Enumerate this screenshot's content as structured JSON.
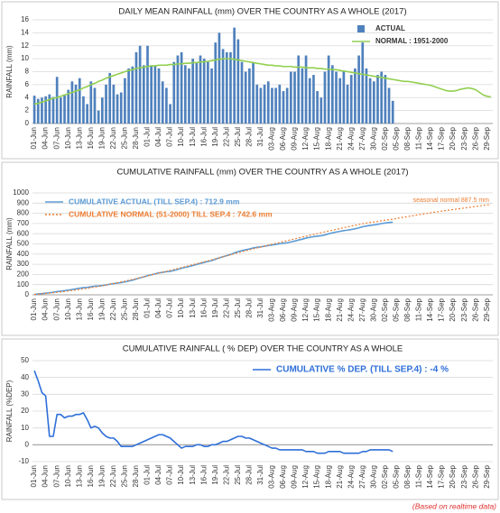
{
  "chart_data": [
    {
      "type": "bar",
      "title": "DAILY MEAN RAINFALL (mm) OVER THE COUNTRY AS A WHOLE  (2017)",
      "y_label": "RAINFALL (mm)",
      "categories": [
        "01-Jun",
        null,
        null,
        "04-Jun",
        null,
        null,
        "07-Jun",
        null,
        null,
        "10-Jun",
        null,
        null,
        "13-Jun",
        null,
        null,
        "16-Jun",
        null,
        null,
        "19-Jun",
        null,
        null,
        "22-Jun",
        null,
        null,
        "25-Jun",
        null,
        null,
        "28-Jun",
        null,
        null,
        "01-Jul",
        null,
        null,
        "04-Jul",
        null,
        null,
        "07-Jul",
        null,
        null,
        "10-Jul",
        null,
        null,
        "13-Jul",
        null,
        null,
        "16-Jul",
        null,
        null,
        "19-Jul",
        null,
        null,
        "22-Jul",
        null,
        null,
        "25-Jul",
        null,
        null,
        "28-Jul",
        null,
        null,
        "31-Jul",
        null,
        null,
        "03-Aug",
        null,
        null,
        "06-Aug",
        null,
        null,
        "09-Aug",
        null,
        null,
        "12-Aug",
        null,
        null,
        "15-Aug",
        null,
        null,
        "18-Aug",
        null,
        null,
        "21-Aug",
        null,
        null,
        "24-Aug",
        null,
        null,
        "27-Aug",
        null,
        null,
        "30-Aug",
        null,
        null,
        "02-Sep",
        null,
        null,
        "05-Sep",
        null,
        null,
        "08-Sep",
        null,
        null,
        "11-Sep",
        null,
        null,
        "14-Sep",
        null,
        null,
        "17-Sep",
        null,
        null,
        "20-Sep",
        null,
        null,
        "23-Sep",
        null,
        null,
        "26-Sep",
        null,
        null,
        "29-Sep",
        null
      ],
      "series": [
        {
          "name": "ACTUAL",
          "type": "bar",
          "color": "#4f81bd",
          "values": [
            4.3,
            3.8,
            4.0,
            4.2,
            4.5,
            4.1,
            7.2,
            4.0,
            4.5,
            5.2,
            6.5,
            6.0,
            7.0,
            4.2,
            3.0,
            6.5,
            5.5,
            2.0,
            4.0,
            6.0,
            7.8,
            6.0,
            4.5,
            4.8,
            7.0,
            8.5,
            8.8,
            11.0,
            12.0,
            9.0,
            12.0,
            9.0,
            9.0,
            8.5,
            6.5,
            5.5,
            3.0,
            9.5,
            10.5,
            11.0,
            9.0,
            8.5,
            10.0,
            9.5,
            10.5,
            10.0,
            9.5,
            8.5,
            12.5,
            14.0,
            11.5,
            11.0,
            11.0,
            14.8,
            13.0,
            9.5,
            8.0,
            8.5,
            9.5,
            6.0,
            5.5,
            6.0,
            6.5,
            5.5,
            5.5,
            6.0,
            5.0,
            5.5,
            8.0,
            8.0,
            10.5,
            8.5,
            10.5,
            7.0,
            7.5,
            5.0,
            4.0,
            8.0,
            10.5,
            9.0,
            8.0,
            7.0,
            8.0,
            6.0,
            7.5,
            8.5,
            10.5,
            12.5,
            8.5,
            7.0,
            6.5,
            7.5,
            8.0,
            7.5,
            5.5,
            3.5,
            null,
            null,
            null,
            null,
            null,
            null,
            null,
            null,
            null,
            null,
            null,
            null,
            null,
            null,
            null,
            null,
            null,
            null,
            null,
            null,
            null,
            null,
            null,
            null,
            null,
            null
          ]
        },
        {
          "name": "NORMAL : 1951-2000",
          "type": "line",
          "color": "#92d050",
          "values": [
            3.0,
            3.1,
            3.3,
            3.5,
            3.7,
            3.9,
            4.0,
            4.2,
            4.4,
            4.6,
            4.8,
            5.0,
            5.2,
            5.5,
            5.7,
            6.0,
            6.2,
            6.5,
            6.7,
            7.0,
            7.2,
            7.4,
            7.6,
            7.8,
            8.0,
            8.2,
            8.3,
            8.5,
            8.6,
            8.7,
            8.8,
            8.9,
            8.9,
            9.0,
            9.0,
            9.0,
            9.1,
            9.1,
            9.2,
            9.2,
            9.3,
            9.3,
            9.4,
            9.4,
            9.5,
            9.5,
            9.6,
            9.7,
            9.8,
            9.9,
            10.0,
            10.0,
            10.0,
            9.9,
            9.8,
            9.7,
            9.6,
            9.5,
            9.4,
            9.3,
            9.2,
            9.1,
            9.0,
            9.0,
            8.9,
            8.9,
            8.8,
            8.8,
            8.8,
            8.7,
            8.7,
            8.7,
            8.6,
            8.6,
            8.6,
            8.5,
            8.5,
            8.4,
            8.4,
            8.3,
            8.3,
            8.2,
            8.1,
            8.0,
            7.9,
            7.8,
            7.7,
            7.6,
            7.5,
            7.4,
            7.3,
            7.2,
            7.1,
            7.0,
            6.9,
            6.8,
            6.7,
            6.6,
            6.5,
            6.5,
            6.4,
            6.3,
            6.2,
            6.1,
            6.0,
            5.9,
            5.7,
            5.5,
            5.3,
            5.1,
            5.0,
            5.0,
            5.1,
            5.3,
            5.4,
            5.5,
            5.4,
            5.2,
            4.8,
            4.4,
            4.2,
            4.1
          ]
        }
      ],
      "ylim": [
        0,
        16
      ],
      "yticks": [
        0,
        2,
        4,
        6,
        8,
        10,
        12,
        14,
        16
      ],
      "grid": true,
      "legend": "upper right"
    },
    {
      "type": "line",
      "title": "CUMULATIVE RAINFALL (mm) OVER THE COUNTRY AS A WHOLE  (2017)",
      "y_label": "RAINFALL (mm)",
      "annotation": "seasonal normal 887.5 mm",
      "categories": [
        "01-Jun",
        null,
        null,
        "04-Jun",
        null,
        null,
        "07-Jun",
        null,
        null,
        "10-Jun",
        null,
        null,
        "13-Jun",
        null,
        null,
        "16-Jun",
        null,
        null,
        "19-Jun",
        null,
        null,
        "22-Jun",
        null,
        null,
        "25-Jun",
        null,
        null,
        "28-Jun",
        null,
        null,
        "01-Jul",
        null,
        null,
        "04-Jul",
        null,
        null,
        "07-Jul",
        null,
        null,
        "10-Jul",
        null,
        null,
        "13-Jul",
        null,
        null,
        "16-Jul",
        null,
        null,
        "19-Jul",
        null,
        null,
        "22-Jul",
        null,
        null,
        "25-Jul",
        null,
        null,
        "28-Jul",
        null,
        null,
        "31-Jul",
        null,
        null,
        "03-Aug",
        null,
        null,
        "06-Aug",
        null,
        null,
        "09-Aug",
        null,
        null,
        "12-Aug",
        null,
        null,
        "15-Aug",
        null,
        null,
        "18-Aug",
        null,
        null,
        "21-Aug",
        null,
        null,
        "24-Aug",
        null,
        null,
        "27-Aug",
        null,
        null,
        "30-Aug",
        null,
        null,
        "02-Sep",
        null,
        null,
        "05-Sep",
        null,
        null,
        "08-Sep",
        null,
        null,
        "11-Sep",
        null,
        null,
        "14-Sep",
        null,
        null,
        "17-Sep",
        null,
        null,
        "20-Sep",
        null,
        null,
        "23-Sep",
        null,
        null,
        "26-Sep",
        null,
        null,
        "29-Sep",
        null
      ],
      "series": [
        {
          "name": "CUMULATIVE ACTUAL (TILL SEP.4) : 712.9 mm",
          "color": "#5b9bd5",
          "values": [
            4,
            8,
            12,
            16,
            21,
            25,
            32,
            36,
            41,
            46,
            52,
            58,
            65,
            70,
            73,
            79,
            85,
            87,
            91,
            97,
            104,
            110,
            115,
            120,
            127,
            135,
            144,
            155,
            167,
            176,
            188,
            197,
            206,
            215,
            221,
            227,
            230,
            239,
            250,
            261,
            270,
            278,
            288,
            298,
            308,
            318,
            328,
            336,
            349,
            363,
            374,
            385,
            396,
            411,
            424,
            434,
            442,
            450,
            460,
            466,
            471,
            477,
            484,
            489,
            495,
            501,
            506,
            511,
            519,
            527,
            538,
            546,
            557,
            564,
            571,
            576,
            580,
            588,
            599,
            608,
            616,
            623,
            630,
            635,
            641,
            648,
            657,
            668,
            675,
            681,
            686,
            692,
            699,
            705,
            710,
            712.9,
            null,
            null,
            null,
            null,
            null,
            null,
            null,
            null,
            null,
            null,
            null,
            null,
            null,
            null,
            null,
            null,
            null,
            null,
            null,
            null,
            null,
            null,
            null,
            null,
            null,
            null
          ]
        },
        {
          "name": "CUMULATIVE NORMAL (51-2000) TILL SEP.4 : 742.6 mm",
          "color": "#ed7d31",
          "dashed": true,
          "values": [
            3,
            6,
            9,
            13,
            17,
            21,
            25,
            29,
            33,
            38,
            43,
            48,
            53,
            58,
            64,
            70,
            76,
            83,
            89,
            96,
            104,
            111,
            119,
            126,
            134,
            143,
            151,
            159,
            168,
            177,
            186,
            195,
            204,
            213,
            222,
            231,
            240,
            249,
            258,
            267,
            276,
            286,
            295,
            305,
            314,
            324,
            333,
            343,
            353,
            363,
            373,
            383,
            393,
            403,
            413,
            422,
            432,
            441,
            451,
            460,
            469,
            478,
            487,
            496,
            505,
            514,
            523,
            532,
            540,
            549,
            558,
            567,
            575,
            584,
            592,
            601,
            609,
            618,
            626,
            634,
            643,
            651,
            659,
            667,
            675,
            683,
            690,
            698,
            704,
            710,
            715,
            720,
            727,
            733,
            738,
            742.6,
            749,
            756,
            762,
            768,
            775,
            781,
            787,
            793,
            799,
            805,
            811,
            816,
            822,
            827,
            832,
            837,
            842,
            847,
            852,
            857,
            862,
            868,
            873,
            878,
            882,
            887.5
          ]
        }
      ],
      "ylim": [
        0,
        1000
      ],
      "yticks": [
        0,
        100,
        200,
        300,
        400,
        500,
        600,
        700,
        800,
        900,
        1000
      ],
      "grid": true,
      "legend": "upper left",
      "legend_colored_text": true
    },
    {
      "type": "line",
      "title": "CUMULATIVE RAINFALL ( % DEP) OVER THE COUNTRY AS A WHOLE",
      "y_label": "RAINFALL (%DEP)",
      "categories": [
        "01-Jun",
        null,
        null,
        "04-Jun",
        null,
        null,
        "07-Jun",
        null,
        null,
        "10-Jun",
        null,
        null,
        "13-Jun",
        null,
        null,
        "16-Jun",
        null,
        null,
        "19-Jun",
        null,
        null,
        "22-Jun",
        null,
        null,
        "25-Jun",
        null,
        null,
        "28-Jun",
        null,
        null,
        "01-Jul",
        null,
        null,
        "04-Jul",
        null,
        null,
        "07-Jul",
        null,
        null,
        "10-Jul",
        null,
        null,
        "13-Jul",
        null,
        null,
        "16-Jul",
        null,
        null,
        "19-Jul",
        null,
        null,
        "22-Jul",
        null,
        null,
        "25-Jul",
        null,
        null,
        "28-Jul",
        null,
        null,
        "31-Jul",
        null,
        null,
        "03-Aug",
        null,
        null,
        "06-Aug",
        null,
        null,
        "09-Aug",
        null,
        null,
        "12-Aug",
        null,
        null,
        "15-Aug",
        null,
        null,
        "18-Aug",
        null,
        null,
        "21-Aug",
        null,
        null,
        "24-Aug",
        null,
        null,
        "27-Aug",
        null,
        null,
        "30-Aug",
        null,
        null,
        "02-Sep",
        null,
        null,
        "05-Sep",
        null,
        null,
        "08-Sep",
        null,
        null,
        "11-Sep",
        null,
        null,
        "14-Sep",
        null,
        null,
        "17-Sep",
        null,
        null,
        "20-Sep",
        null,
        null,
        "23-Sep",
        null,
        null,
        "26-Sep",
        null,
        null,
        "29-Sep",
        null
      ],
      "series": [
        {
          "name": "CUMULATIVE % DEP.  (TILL  SEP.4) : -4 %",
          "color": "#2e6fd8",
          "values": [
            44,
            38,
            31,
            29,
            5,
            5,
            18,
            18,
            16,
            17,
            17,
            18,
            18,
            19,
            15,
            10,
            11,
            10,
            7,
            5,
            4,
            4,
            2,
            -1,
            -1,
            -1,
            -1,
            0,
            1,
            2,
            3,
            4,
            5,
            6,
            6,
            5,
            4,
            2,
            0,
            -2,
            -1,
            -1,
            -1,
            0,
            0,
            -1,
            -1,
            0,
            0,
            1,
            2,
            2,
            3,
            4,
            5,
            5,
            4,
            4,
            3,
            2,
            1,
            0,
            -1,
            -2,
            -2,
            -3,
            -3,
            -3,
            -3,
            -3,
            -3,
            -3,
            -4,
            -4,
            -4,
            -5,
            -5,
            -5,
            -4,
            -4,
            -4,
            -4,
            -5,
            -5,
            -5,
            -5,
            -5,
            -4,
            -4,
            -3,
            -3,
            -3,
            -3,
            -3,
            -3,
            -4,
            null,
            null,
            null,
            null,
            null,
            null,
            null,
            null,
            null,
            null,
            null,
            null,
            null,
            null,
            null,
            null,
            null,
            null,
            null,
            null,
            null,
            null,
            null,
            null,
            null,
            null
          ]
        }
      ],
      "ylim": [
        -10,
        50
      ],
      "yticks": [
        -10,
        0,
        10,
        20,
        30,
        40,
        50
      ],
      "grid": true,
      "legend": "upper right",
      "legend_colored_text": true
    }
  ],
  "footnote": "(Based on realtime data)"
}
